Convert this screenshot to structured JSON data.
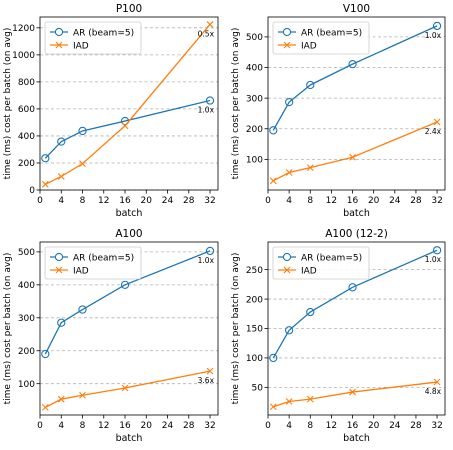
{
  "colors": {
    "ar": "#1f77b4",
    "iad": "#ff7f0e",
    "grid": "#b0b0b0"
  },
  "chart_data": [
    {
      "type": "line",
      "title": "P100",
      "xlabel": "batch",
      "ylabel": "time (ms) cost per batch (on avg)",
      "xlim": [
        0,
        33.5
      ],
      "ylim": [
        0,
        1280
      ],
      "xticks": [
        0,
        4,
        8,
        12,
        16,
        20,
        24,
        28,
        32
      ],
      "yticks": [
        0,
        200,
        400,
        600,
        800,
        1000,
        1200
      ],
      "grid": "y",
      "legend_position": "top-left",
      "series": [
        {
          "name": "AR (beam=5)",
          "marker": "circle",
          "x": [
            1,
            4,
            8,
            16,
            32
          ],
          "y": [
            235,
            358,
            437,
            510,
            662
          ]
        },
        {
          "name": "IAD",
          "marker": "x",
          "x": [
            1,
            4,
            8,
            16,
            32
          ],
          "y": [
            42,
            100,
            195,
            475,
            1225
          ]
        }
      ],
      "annotations": [
        {
          "text": "0.5x",
          "x": 32,
          "y": 1225
        },
        {
          "text": "1.0x",
          "x": 32,
          "y": 662
        }
      ]
    },
    {
      "type": "line",
      "title": "V100",
      "xlabel": "batch",
      "ylabel": "time (ms) cost per batch (on avg)",
      "xlim": [
        0,
        33.5
      ],
      "ylim": [
        0,
        565
      ],
      "xticks": [
        0,
        4,
        8,
        12,
        16,
        20,
        24,
        28,
        32
      ],
      "yticks": [
        100,
        200,
        300,
        400,
        500
      ],
      "grid": "y",
      "legend_position": "top-left",
      "series": [
        {
          "name": "AR (beam=5)",
          "marker": "circle",
          "x": [
            1,
            4,
            8,
            16,
            32
          ],
          "y": [
            195,
            287,
            343,
            411,
            536
          ]
        },
        {
          "name": "IAD",
          "marker": "x",
          "x": [
            1,
            4,
            8,
            16,
            32
          ],
          "y": [
            30,
            57,
            73,
            107,
            222
          ]
        }
      ],
      "annotations": [
        {
          "text": "1.0x",
          "x": 32,
          "y": 536
        },
        {
          "text": "2.4x",
          "x": 32,
          "y": 222
        }
      ]
    },
    {
      "type": "line",
      "title": "A100",
      "xlabel": "batch",
      "ylabel": "time (ms) cost per batch (on avg)",
      "xlim": [
        0,
        33.5
      ],
      "ylim": [
        5,
        530
      ],
      "xticks": [
        0,
        4,
        8,
        12,
        16,
        20,
        24,
        28,
        32
      ],
      "yticks": [
        100,
        200,
        300,
        400,
        500
      ],
      "grid": "y",
      "legend_position": "top-left",
      "series": [
        {
          "name": "AR (beam=5)",
          "marker": "circle",
          "x": [
            1,
            4,
            8,
            16,
            32
          ],
          "y": [
            190,
            285,
            325,
            400,
            503
          ]
        },
        {
          "name": "IAD",
          "marker": "x",
          "x": [
            1,
            4,
            8,
            16,
            32
          ],
          "y": [
            28,
            53,
            65,
            87,
            138
          ]
        }
      ],
      "annotations": [
        {
          "text": "1.0x",
          "x": 32,
          "y": 503
        },
        {
          "text": "3.6x",
          "x": 32,
          "y": 138
        }
      ]
    },
    {
      "type": "line",
      "title": "A100 (12-2)",
      "xlabel": "batch",
      "ylabel": "time (ms) cost per batch (on avg)",
      "xlim": [
        0,
        33.5
      ],
      "ylim": [
        3,
        297
      ],
      "xticks": [
        0,
        4,
        8,
        12,
        16,
        20,
        24,
        28,
        32
      ],
      "yticks": [
        50,
        100,
        150,
        200,
        250
      ],
      "grid": "y",
      "legend_position": "top-left",
      "series": [
        {
          "name": "AR (beam=5)",
          "marker": "circle",
          "x": [
            1,
            4,
            8,
            16,
            32
          ],
          "y": [
            100,
            147,
            178,
            220,
            283
          ]
        },
        {
          "name": "IAD",
          "marker": "x",
          "x": [
            1,
            4,
            8,
            16,
            32
          ],
          "y": [
            17,
            26,
            30,
            42,
            59
          ]
        }
      ],
      "annotations": [
        {
          "text": "1.0x",
          "x": 32,
          "y": 283
        },
        {
          "text": "4.8x",
          "x": 32,
          "y": 59
        }
      ]
    }
  ]
}
